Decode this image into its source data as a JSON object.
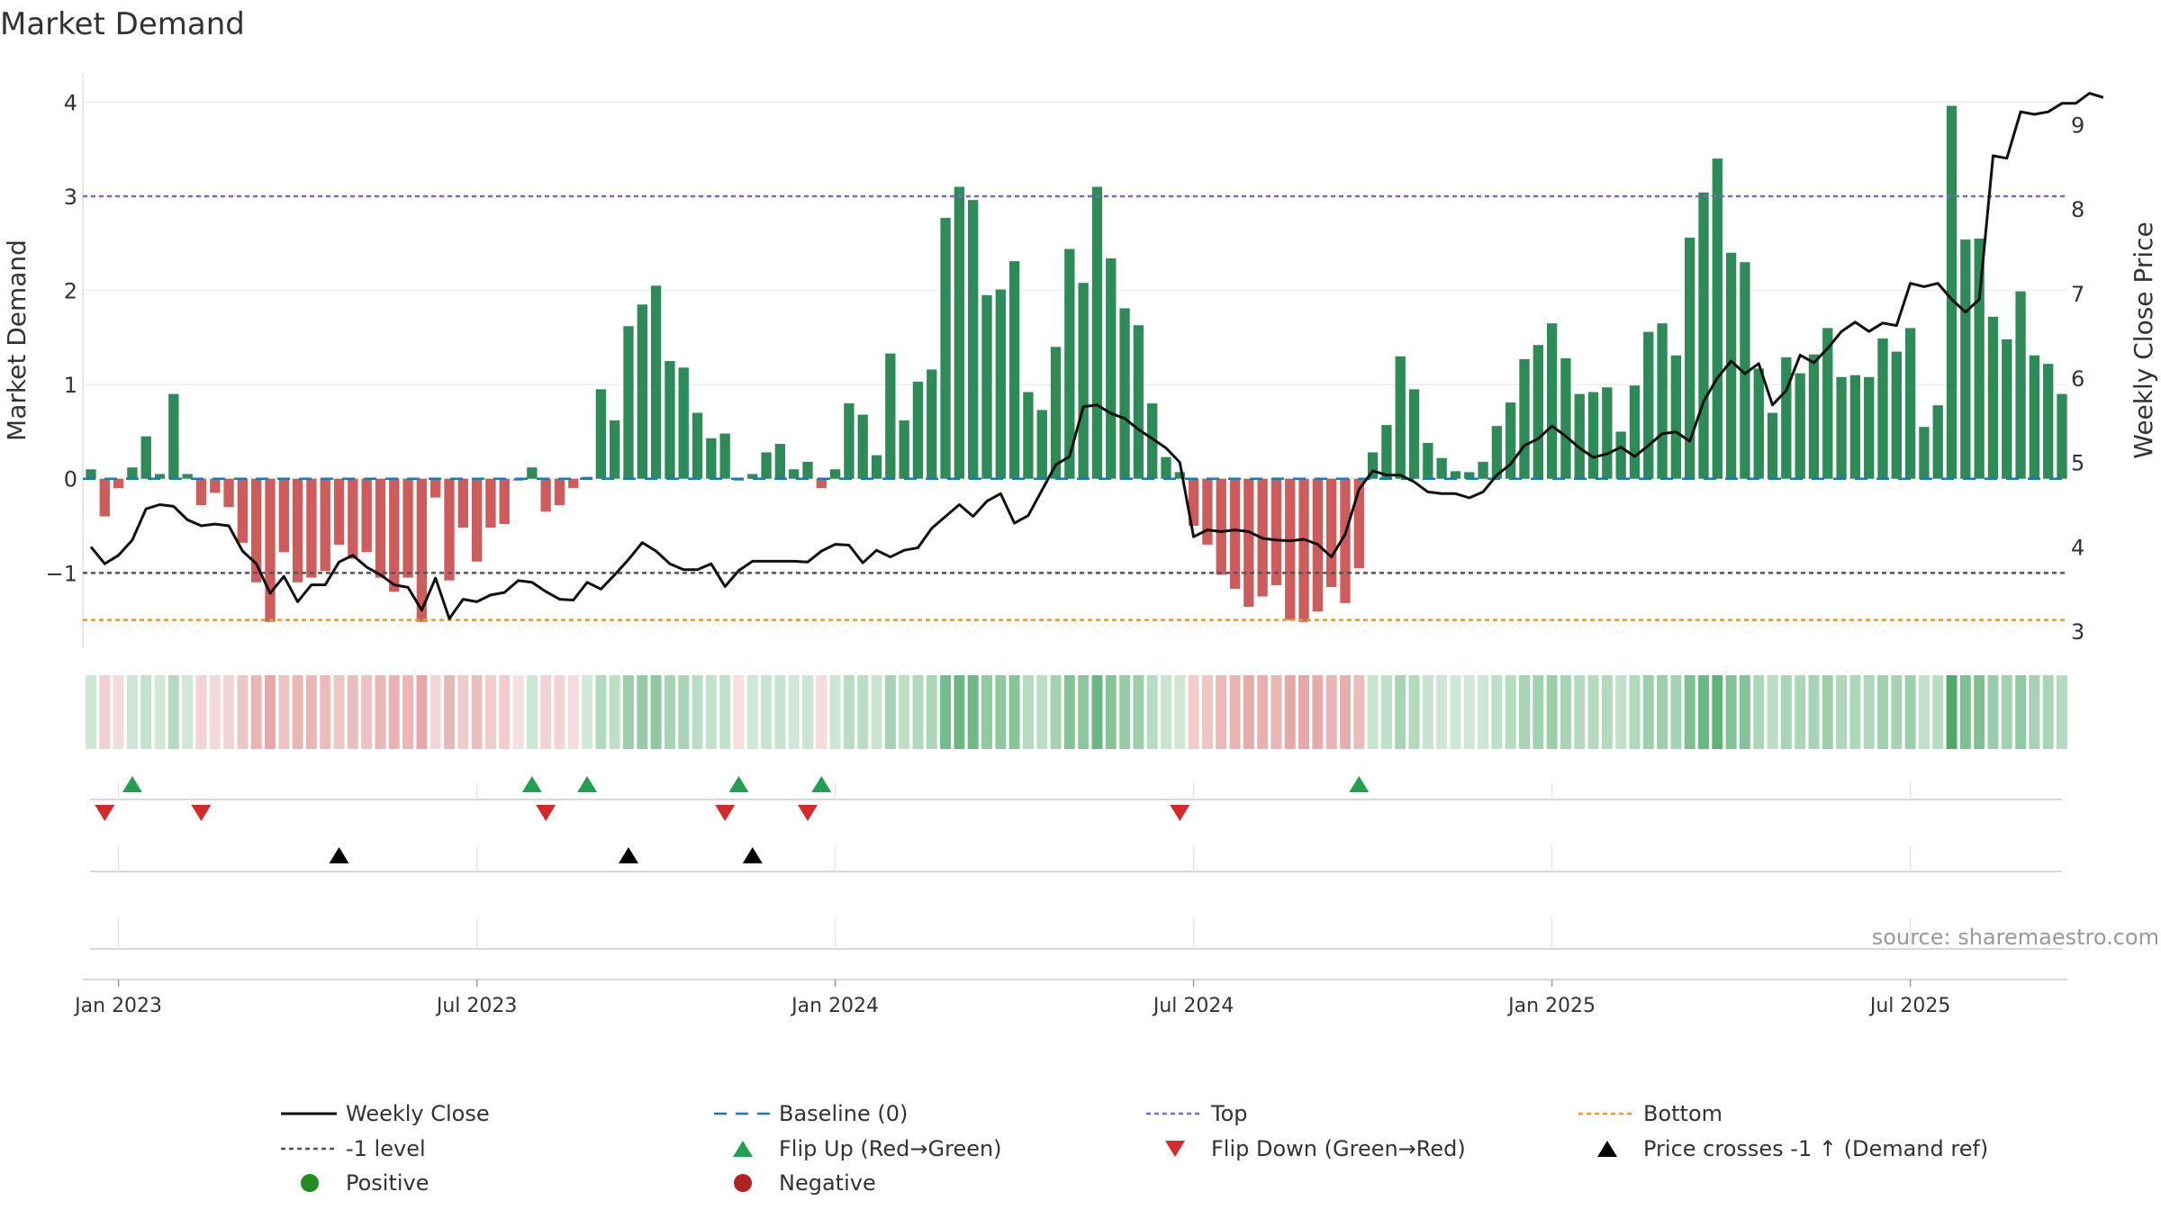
{
  "chart_data": {
    "type": "bar",
    "title": "Market Demand",
    "ylabel_left": "Market Demand",
    "ylabel_right": "Weekly Close Price",
    "ylim_left": [
      -1.8,
      4.3
    ],
    "ylim_right": [
      2.8,
      9.6
    ],
    "yticks_left": [
      "4",
      "3",
      "2",
      "1",
      "0",
      "−1"
    ],
    "yticks_right": [
      "9",
      "8",
      "7",
      "6",
      "5",
      "4",
      "3"
    ],
    "x_ticks": [
      "Jan 2023",
      "Jul 2023",
      "Jan 2024",
      "Jul 2024",
      "Jan 2025",
      "Jul 2025"
    ],
    "x_tick_weeks": [
      2,
      28,
      54,
      80,
      106,
      132
    ],
    "reference_lines": {
      "top": 3,
      "minus_one": -1,
      "bottom": -1.5,
      "baseline": 0
    },
    "demand": [
      0.1,
      -0.4,
      -0.1,
      0.12,
      0.45,
      0.05,
      0.9,
      0.05,
      -0.28,
      -0.15,
      -0.3,
      -0.68,
      -1.1,
      -1.52,
      -0.78,
      -1.1,
      -1.05,
      -0.98,
      -0.7,
      -0.85,
      -0.78,
      -1.05,
      -1.2,
      -1.05,
      -1.52,
      -0.2,
      -1.08,
      -0.52,
      -0.88,
      -0.52,
      -0.48,
      -0.02,
      0.12,
      -0.35,
      -0.28,
      -0.1,
      0.02,
      0.95,
      0.62,
      1.62,
      1.85,
      2.05,
      1.25,
      1.18,
      0.7,
      0.43,
      0.48,
      -0.02,
      0.05,
      0.28,
      0.37,
      0.1,
      0.18,
      -0.1,
      0.1,
      0.8,
      0.68,
      0.25,
      1.33,
      0.62,
      1.03,
      1.16,
      2.77,
      3.1,
      2.96,
      1.95,
      2.01,
      2.31,
      0.92,
      0.73,
      1.4,
      2.44,
      2.08,
      3.1,
      2.34,
      1.81,
      1.63,
      0.8,
      0.23,
      0.07,
      -0.5,
      -0.7,
      -1.02,
      -1.17,
      -1.36,
      -1.25,
      -1.13,
      -1.5,
      -1.52,
      -1.41,
      -1.15,
      -1.32,
      -0.95,
      0.28,
      0.57,
      1.3,
      0.95,
      0.38,
      0.22,
      0.08,
      0.07,
      0.18,
      0.56,
      0.81,
      1.27,
      1.42,
      1.65,
      1.28,
      0.9,
      0.92,
      0.97,
      0.5,
      0.99,
      1.56,
      1.65,
      1.31,
      2.56,
      3.04,
      3.4,
      2.4,
      2.3,
      1.17,
      0.7,
      1.29,
      1.12,
      1.32,
      1.6,
      1.08,
      1.1,
      1.08,
      1.49,
      1.35,
      1.6,
      0.55,
      0.78,
      3.96,
      2.54,
      2.55,
      1.72,
      1.48,
      1.99,
      1.31,
      1.22,
      0.9
    ],
    "weekly_close": [
      4.0,
      3.8,
      3.9,
      4.08,
      4.45,
      4.5,
      4.48,
      4.32,
      4.25,
      4.27,
      4.25,
      3.95,
      3.8,
      3.45,
      3.65,
      3.35,
      3.55,
      3.55,
      3.82,
      3.9,
      3.76,
      3.67,
      3.55,
      3.52,
      3.25,
      3.63,
      3.15,
      3.38,
      3.35,
      3.43,
      3.46,
      3.6,
      3.58,
      3.47,
      3.38,
      3.37,
      3.58,
      3.5,
      3.67,
      3.85,
      4.05,
      3.95,
      3.8,
      3.73,
      3.73,
      3.8,
      3.53,
      3.72,
      3.83,
      3.83,
      3.83,
      3.83,
      3.82,
      3.95,
      4.03,
      4.02,
      3.81,
      3.96,
      3.88,
      3.96,
      3.99,
      4.22,
      4.36,
      4.5,
      4.36,
      4.54,
      4.63,
      4.28,
      4.37,
      4.67,
      4.97,
      5.07,
      5.66,
      5.68,
      5.58,
      5.52,
      5.39,
      5.28,
      5.17,
      5.0,
      4.12,
      4.2,
      4.18,
      4.2,
      4.18,
      4.1,
      4.08,
      4.07,
      4.09,
      4.03,
      3.88,
      4.15,
      4.68,
      4.9,
      4.85,
      4.85,
      4.77,
      4.65,
      4.63,
      4.63,
      4.58,
      4.65,
      4.85,
      4.98,
      5.2,
      5.28,
      5.43,
      5.31,
      5.17,
      5.06,
      5.1,
      5.18,
      5.07,
      5.2,
      5.34,
      5.36,
      5.25,
      5.72,
      6.0,
      6.2,
      6.05,
      6.17,
      5.68,
      5.85,
      6.27,
      6.18,
      6.35,
      6.55,
      6.66,
      6.55,
      6.65,
      6.62,
      7.12,
      7.08,
      7.12,
      6.93,
      6.78,
      6.93,
      8.63,
      8.6,
      9.15,
      9.12,
      9.15,
      9.25,
      9.25,
      9.37,
      9.32
    ],
    "flip_up_weeks": [
      3,
      32,
      36,
      47,
      53,
      92
    ],
    "flip_down_weeks": [
      1,
      8,
      33,
      46,
      52,
      79
    ],
    "price_cross_weeks": [
      18,
      39,
      48
    ],
    "source": "source: sharemaestro.com",
    "colors": {
      "positive_bar": "#2e8b57",
      "negative_bar": "#cd5c5c",
      "close_line": "#111111",
      "top_line": "#7b68c8",
      "minus_one_line": "#555555",
      "bottom_line": "#e89a2c",
      "baseline": "#1f77b4",
      "flip_up": "#22a050",
      "flip_down": "#d42a2a",
      "price_cross": "#000000",
      "positive_dot": "#228b22",
      "negative_dot": "#b22222"
    },
    "legend": [
      {
        "label": "Weekly Close",
        "kind": "line-solid"
      },
      {
        "label": "Baseline (0)",
        "kind": "line-dash-blue"
      },
      {
        "label": "Top",
        "kind": "line-dot-purple"
      },
      {
        "label": "Bottom",
        "kind": "line-dot-orange"
      },
      {
        "label": "-1 level",
        "kind": "line-dot-gray"
      },
      {
        "label": "Flip Up (Red→Green)",
        "kind": "tri-up-green"
      },
      {
        "label": "Flip Down (Green→Red)",
        "kind": "tri-down-red"
      },
      {
        "label": "Price crosses -1 ↑ (Demand ref)",
        "kind": "tri-up-black"
      },
      {
        "label": "Positive",
        "kind": "dot-green"
      },
      {
        "label": "Negative",
        "kind": "dot-red"
      }
    ]
  }
}
